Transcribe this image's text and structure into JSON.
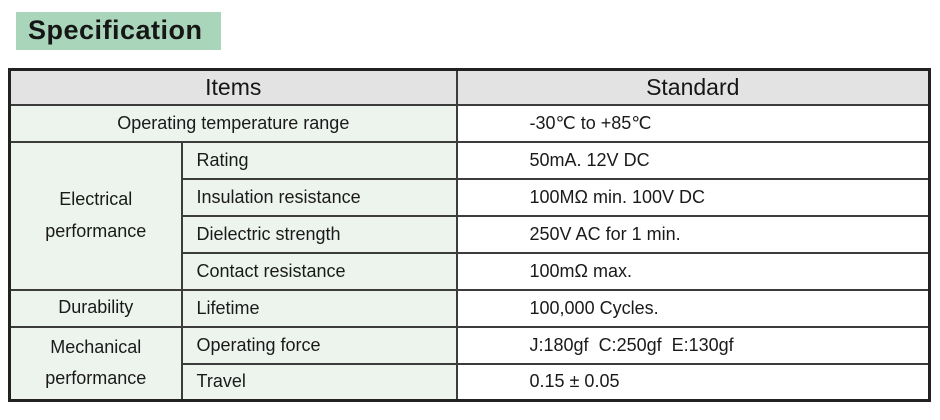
{
  "title": "Specification",
  "colors": {
    "title_bg": "#a9d6ba",
    "header_bg": "#e3e3e3",
    "items_bg": "#edf4ee",
    "standard_bg": "#ffffff",
    "border": "#3c3c3c",
    "text": "#1a1a1a"
  },
  "spec_table": {
    "header": {
      "items": "Items",
      "standard": "Standard"
    },
    "rows": {
      "operating_temperature": {
        "label": "Operating temperature range",
        "standard": "-30℃ to +85℃"
      },
      "electrical": {
        "group": "Electrical performance",
        "rating": {
          "item": "Rating",
          "standard": "50mA. 12V DC"
        },
        "insulation": {
          "item": "Insulation resistance",
          "standard": "100MΩ min. 100V DC"
        },
        "dielectric": {
          "item": "Dielectric strength",
          "standard": "250V AC for 1 min."
        },
        "contact": {
          "item": "Contact resistance",
          "standard": "100mΩ max."
        }
      },
      "durability": {
        "group": "Durability",
        "lifetime": {
          "item": "Lifetime",
          "standard": "100,000 Cycles."
        }
      },
      "mechanical": {
        "group": "Mechanical performance",
        "operating_force": {
          "item": "Operating force",
          "standard": "J:180gf  C:250gf  E:130gf"
        },
        "travel": {
          "item": "Travel",
          "standard": "0.15 ± 0.05"
        }
      }
    }
  }
}
